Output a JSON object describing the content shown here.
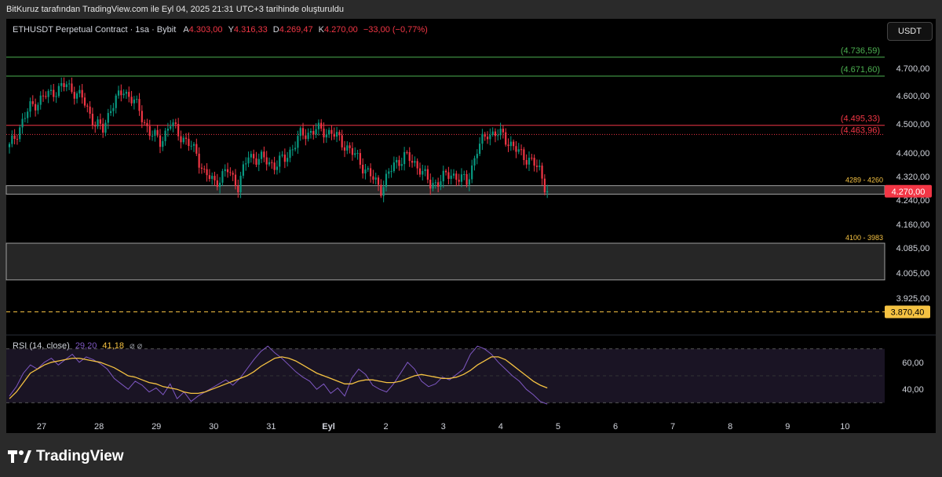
{
  "attribution": "BitKuruz tarafından TradingView.com ile Eyl 04, 2025 21:31 UTC+3 tarihinde oluşturuldu",
  "header": {
    "symbol": "ETHUSDT Perpetual Contract · 1sa · Bybit",
    "open_label": "A",
    "open": "4.303,00",
    "high_label": "Y",
    "high": "4.316,33",
    "low_label": "D",
    "low": "4.269,47",
    "close_label": "K",
    "close": "4.270,00",
    "change": "−33,00 (−0,77%)"
  },
  "currency_button": "USDT",
  "rsi_header": {
    "label": "RSI (14, close)",
    "rsi": "29,20",
    "ma": "41,18",
    "icons": "⌀ ⌀"
  },
  "logo_text": "TradingView",
  "colors": {
    "up": "#089981",
    "down": "#f23645",
    "green_line": "#4caf50",
    "red_line": "#f23645",
    "yellow": "#f5c242",
    "rsi": "#7e57c2"
  },
  "chart_data": [
    {
      "type": "candlestick",
      "title": "ETHUSDT Perpetual Contract · 1sa · Bybit",
      "ylim": [
        3800,
        4780
      ],
      "yticks": [
        "4.700,00",
        "4.600,00",
        "4.500,00",
        "4.400,00",
        "4.320,00",
        "4.240,00",
        "4.160,00",
        "4.085,00",
        "4.005,00",
        "3.925,00"
      ],
      "ytick_values": [
        4700,
        4600,
        4500,
        4400,
        4320,
        4240,
        4160,
        4085,
        4005,
        3925
      ],
      "xticks": [
        "27",
        "28",
        "29",
        "30",
        "31",
        "Eyl",
        "2",
        "3",
        "4",
        "5",
        "6",
        "7",
        "8",
        "9",
        "10"
      ],
      "keypoints": [
        {
          "t": 0,
          "p": 4420
        },
        {
          "t": 8,
          "p": 4560
        },
        {
          "t": 14,
          "p": 4600
        },
        {
          "t": 22,
          "p": 4640
        },
        {
          "t": 28,
          "p": 4590
        },
        {
          "t": 33,
          "p": 4500
        },
        {
          "t": 36,
          "p": 4480
        },
        {
          "t": 39,
          "p": 4560
        },
        {
          "t": 44,
          "p": 4620
        },
        {
          "t": 48,
          "p": 4580
        },
        {
          "t": 54,
          "p": 4470
        },
        {
          "t": 58,
          "p": 4440
        },
        {
          "t": 62,
          "p": 4500
        },
        {
          "t": 66,
          "p": 4460
        },
        {
          "t": 72,
          "p": 4400
        },
        {
          "t": 75,
          "p": 4330
        },
        {
          "t": 79,
          "p": 4300
        },
        {
          "t": 84,
          "p": 4340
        },
        {
          "t": 88,
          "p": 4290
        },
        {
          "t": 92,
          "p": 4390
        },
        {
          "t": 97,
          "p": 4380
        },
        {
          "t": 102,
          "p": 4360
        },
        {
          "t": 106,
          "p": 4380
        },
        {
          "t": 112,
          "p": 4460
        },
        {
          "t": 118,
          "p": 4480
        },
        {
          "t": 124,
          "p": 4470
        },
        {
          "t": 130,
          "p": 4420
        },
        {
          "t": 134,
          "p": 4380
        },
        {
          "t": 140,
          "p": 4310
        },
        {
          "t": 143,
          "p": 4280
        },
        {
          "t": 148,
          "p": 4360
        },
        {
          "t": 152,
          "p": 4390
        },
        {
          "t": 158,
          "p": 4350
        },
        {
          "t": 162,
          "p": 4290
        },
        {
          "t": 166,
          "p": 4310
        },
        {
          "t": 170,
          "p": 4330
        },
        {
          "t": 176,
          "p": 4300
        },
        {
          "t": 180,
          "p": 4410
        },
        {
          "t": 184,
          "p": 4470
        },
        {
          "t": 190,
          "p": 4460
        },
        {
          "t": 196,
          "p": 4400
        },
        {
          "t": 200,
          "p": 4380
        },
        {
          "t": 204,
          "p": 4340
        },
        {
          "t": 207,
          "p": 4270
        }
      ],
      "levels": [
        {
          "name": "(4.736,59)",
          "value": 4736.59,
          "color": "#4caf50",
          "style": "solid"
        },
        {
          "name": "(4.671,60)",
          "value": 4671.6,
          "color": "#4caf50",
          "style": "solid"
        },
        {
          "name": "(4.495,33)",
          "value": 4495.33,
          "color": "#f23645",
          "style": "solid"
        },
        {
          "name": "(4.463,96)",
          "value": 4463.96,
          "color": "#f23645",
          "style": "dotted"
        },
        {
          "name": "3.870,40",
          "value": 3870.4,
          "color": "#f5c242",
          "style": "dashed"
        }
      ],
      "zones": [
        {
          "label": "4289 - 4260",
          "top": 4289,
          "bottom": 4260
        },
        {
          "label": "4100 - 3983",
          "top": 4100,
          "bottom": 3983
        }
      ],
      "last_price": {
        "label": "4.270,00",
        "value": 4270
      }
    },
    {
      "type": "line",
      "title": "RSI (14, close)",
      "ylim": [
        25,
        75
      ],
      "yticks": [
        "60,00",
        "40,00"
      ],
      "ytick_values": [
        60,
        40
      ],
      "bands": [
        70,
        30
      ],
      "series": [
        {
          "name": "RSI",
          "color": "#7e57c2",
          "values": [
            35,
            42,
            52,
            58,
            55,
            60,
            63,
            58,
            62,
            66,
            60,
            64,
            62,
            59,
            55,
            48,
            44,
            40,
            46,
            43,
            38,
            41,
            36,
            44,
            33,
            38,
            31,
            35,
            38,
            41,
            44,
            47,
            43,
            48,
            55,
            62,
            68,
            72,
            67,
            63,
            58,
            53,
            49,
            46,
            40,
            44,
            37,
            41,
            35,
            48,
            55,
            51,
            43,
            40,
            38,
            44,
            52,
            60,
            55,
            46,
            42,
            44,
            49,
            47,
            51,
            55,
            66,
            72,
            70,
            66,
            60,
            55,
            50,
            46,
            40,
            36,
            31,
            29
          ]
        },
        {
          "name": "MA",
          "color": "#f5c242",
          "values": [
            33,
            38,
            45,
            52,
            55,
            58,
            60,
            61,
            62,
            63,
            63,
            62,
            61,
            60,
            58,
            56,
            53,
            50,
            49,
            47,
            45,
            44,
            42,
            41,
            40,
            38,
            37,
            37,
            38,
            40,
            42,
            44,
            46,
            48,
            50,
            53,
            57,
            60,
            63,
            64,
            63,
            61,
            58,
            55,
            52,
            50,
            48,
            46,
            44,
            44,
            46,
            47,
            47,
            46,
            45,
            45,
            46,
            48,
            50,
            51,
            50,
            49,
            48,
            48,
            49,
            51,
            54,
            58,
            61,
            64,
            64,
            62,
            58,
            54,
            50,
            46,
            43,
            41
          ]
        }
      ]
    }
  ]
}
